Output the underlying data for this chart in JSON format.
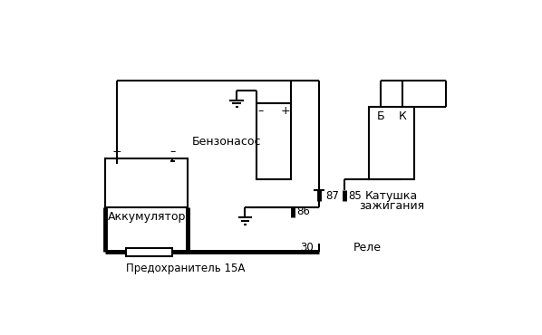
{
  "bg_color": "#ffffff",
  "line_color": "#000000",
  "lw": 1.5,
  "lw_thick": 3.5,
  "labels": {
    "battery": "Аккумулятор",
    "fuel_pump": "Бензонасос",
    "ignition_coil_line1": "Катушка",
    "ignition_coil_line2": "зажигания",
    "relay": "Реле",
    "fuse": "Предохранитель 15А",
    "pin85": "85",
    "pin86": "86",
    "pin87": "87",
    "pin30": "30",
    "coil_B": "Б",
    "coil_K": "К",
    "batt_plus": "+",
    "batt_minus": "–",
    "pump_minus": "–",
    "pump_plus": "+"
  }
}
